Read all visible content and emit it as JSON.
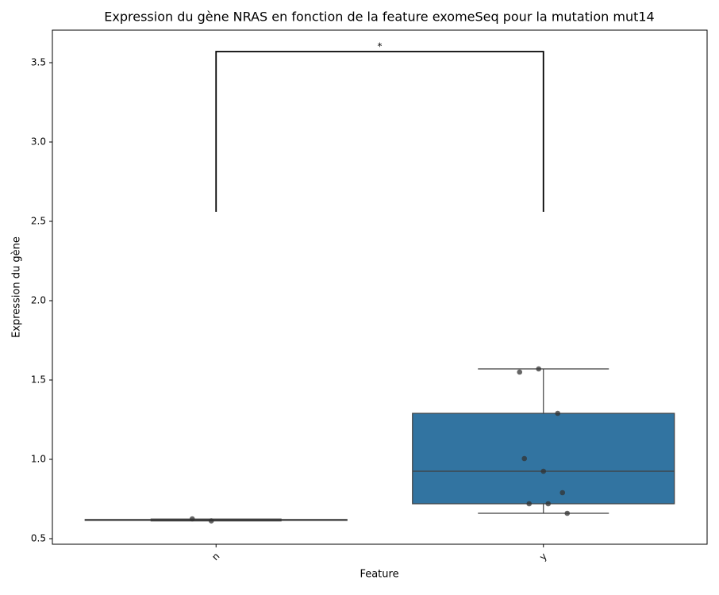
{
  "chart_data": {
    "type": "box",
    "title": "Expression du gène NRAS en fonction de la feature exomeSeq pour la mutation mut14",
    "x_label": "Feature",
    "y_label": "Expression du gène",
    "categories": [
      "n",
      "y"
    ],
    "boxes": [
      {
        "min": 0.612,
        "q1": 0.615,
        "median": 0.618,
        "q3": 0.621,
        "max": 0.624
      },
      {
        "min": 0.66,
        "q1": 0.72,
        "median": 0.925,
        "q3": 1.29,
        "max": 1.57
      }
    ],
    "points": [
      [
        0.625,
        0.612
      ],
      [
        1.55,
        1.57,
        1.29,
        1.005,
        0.925,
        0.79,
        0.72,
        0.72,
        0.66
      ]
    ],
    "color": "#3274a1",
    "ylim": [
      0.465,
      3.705
    ],
    "yticks": [
      0.5,
      {
        "value": 1,
        "label": "1.0"
      },
      1.5,
      {
        "value": 2,
        "label": "2.0"
      },
      2.5,
      {
        "value": 3,
        "label": "3.0"
      },
      3.5
    ],
    "annotation": {
      "text": "*",
      "y_low": 2.56,
      "y_high": 3.57
    }
  }
}
